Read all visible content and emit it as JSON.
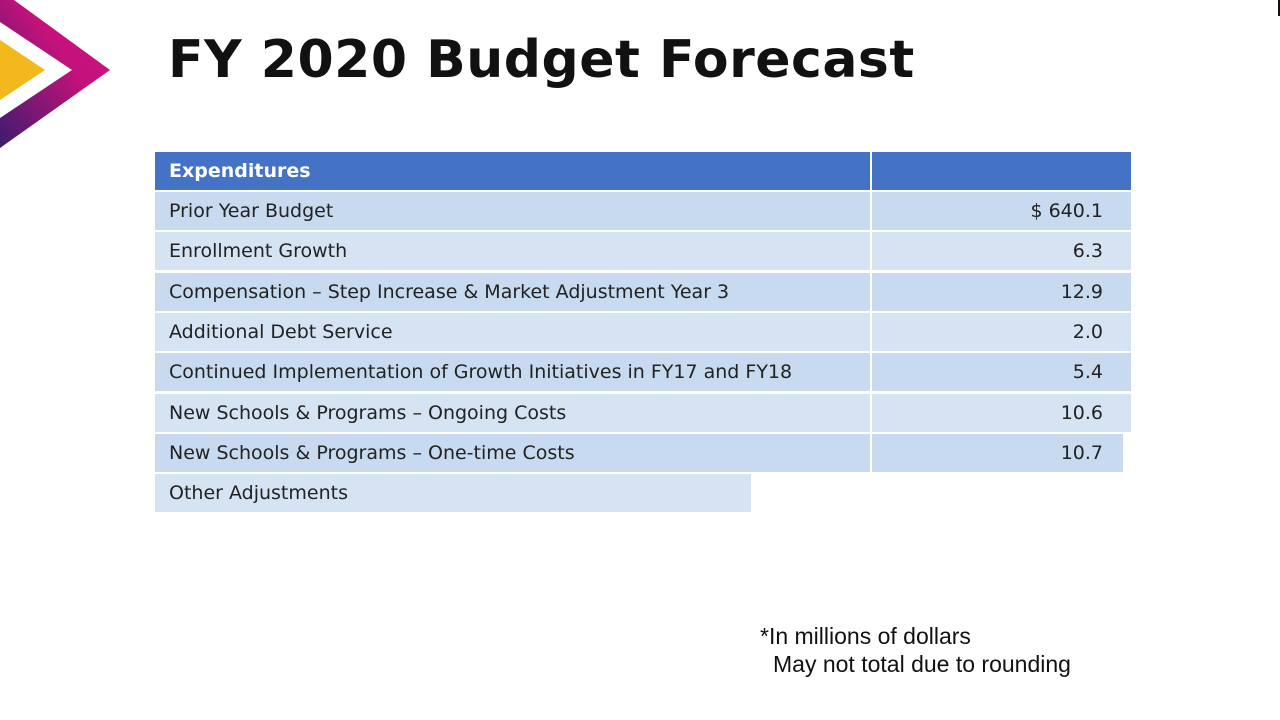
{
  "title": "FY 2020 Budget Forecast",
  "colors": {
    "header": "#4472c4",
    "row_odd": "#c8daef",
    "row_even": "#d5e3f3",
    "logo_gold": "#f2b81c",
    "logo_magenta": "#c3127a",
    "logo_purple": "#3b1c6e"
  },
  "table": {
    "headers": [
      "Expenditures",
      ""
    ],
    "rows": [
      {
        "label": "Prior Year Budget",
        "value": "$ 640.1"
      },
      {
        "label": "Enrollment Growth",
        "value": "6.3"
      },
      {
        "label": "Compensation – Step Increase & Market Adjustment Year 3",
        "value": "12.9"
      },
      {
        "label": "Additional Debt Service",
        "value": "2.0"
      },
      {
        "label": "Continued Implementation of Growth Initiatives in FY17 and FY18",
        "value": "5.4"
      },
      {
        "label": "New Schools & Programs – Ongoing Costs",
        "value": "10.6"
      },
      {
        "label": "New Schools & Programs – One-time Costs",
        "value": "10.7"
      },
      {
        "label": "Other Adjustments",
        "value": null
      }
    ]
  },
  "footnote": {
    "line1": "*In millions of dollars",
    "line2": "May not total due to rounding"
  }
}
